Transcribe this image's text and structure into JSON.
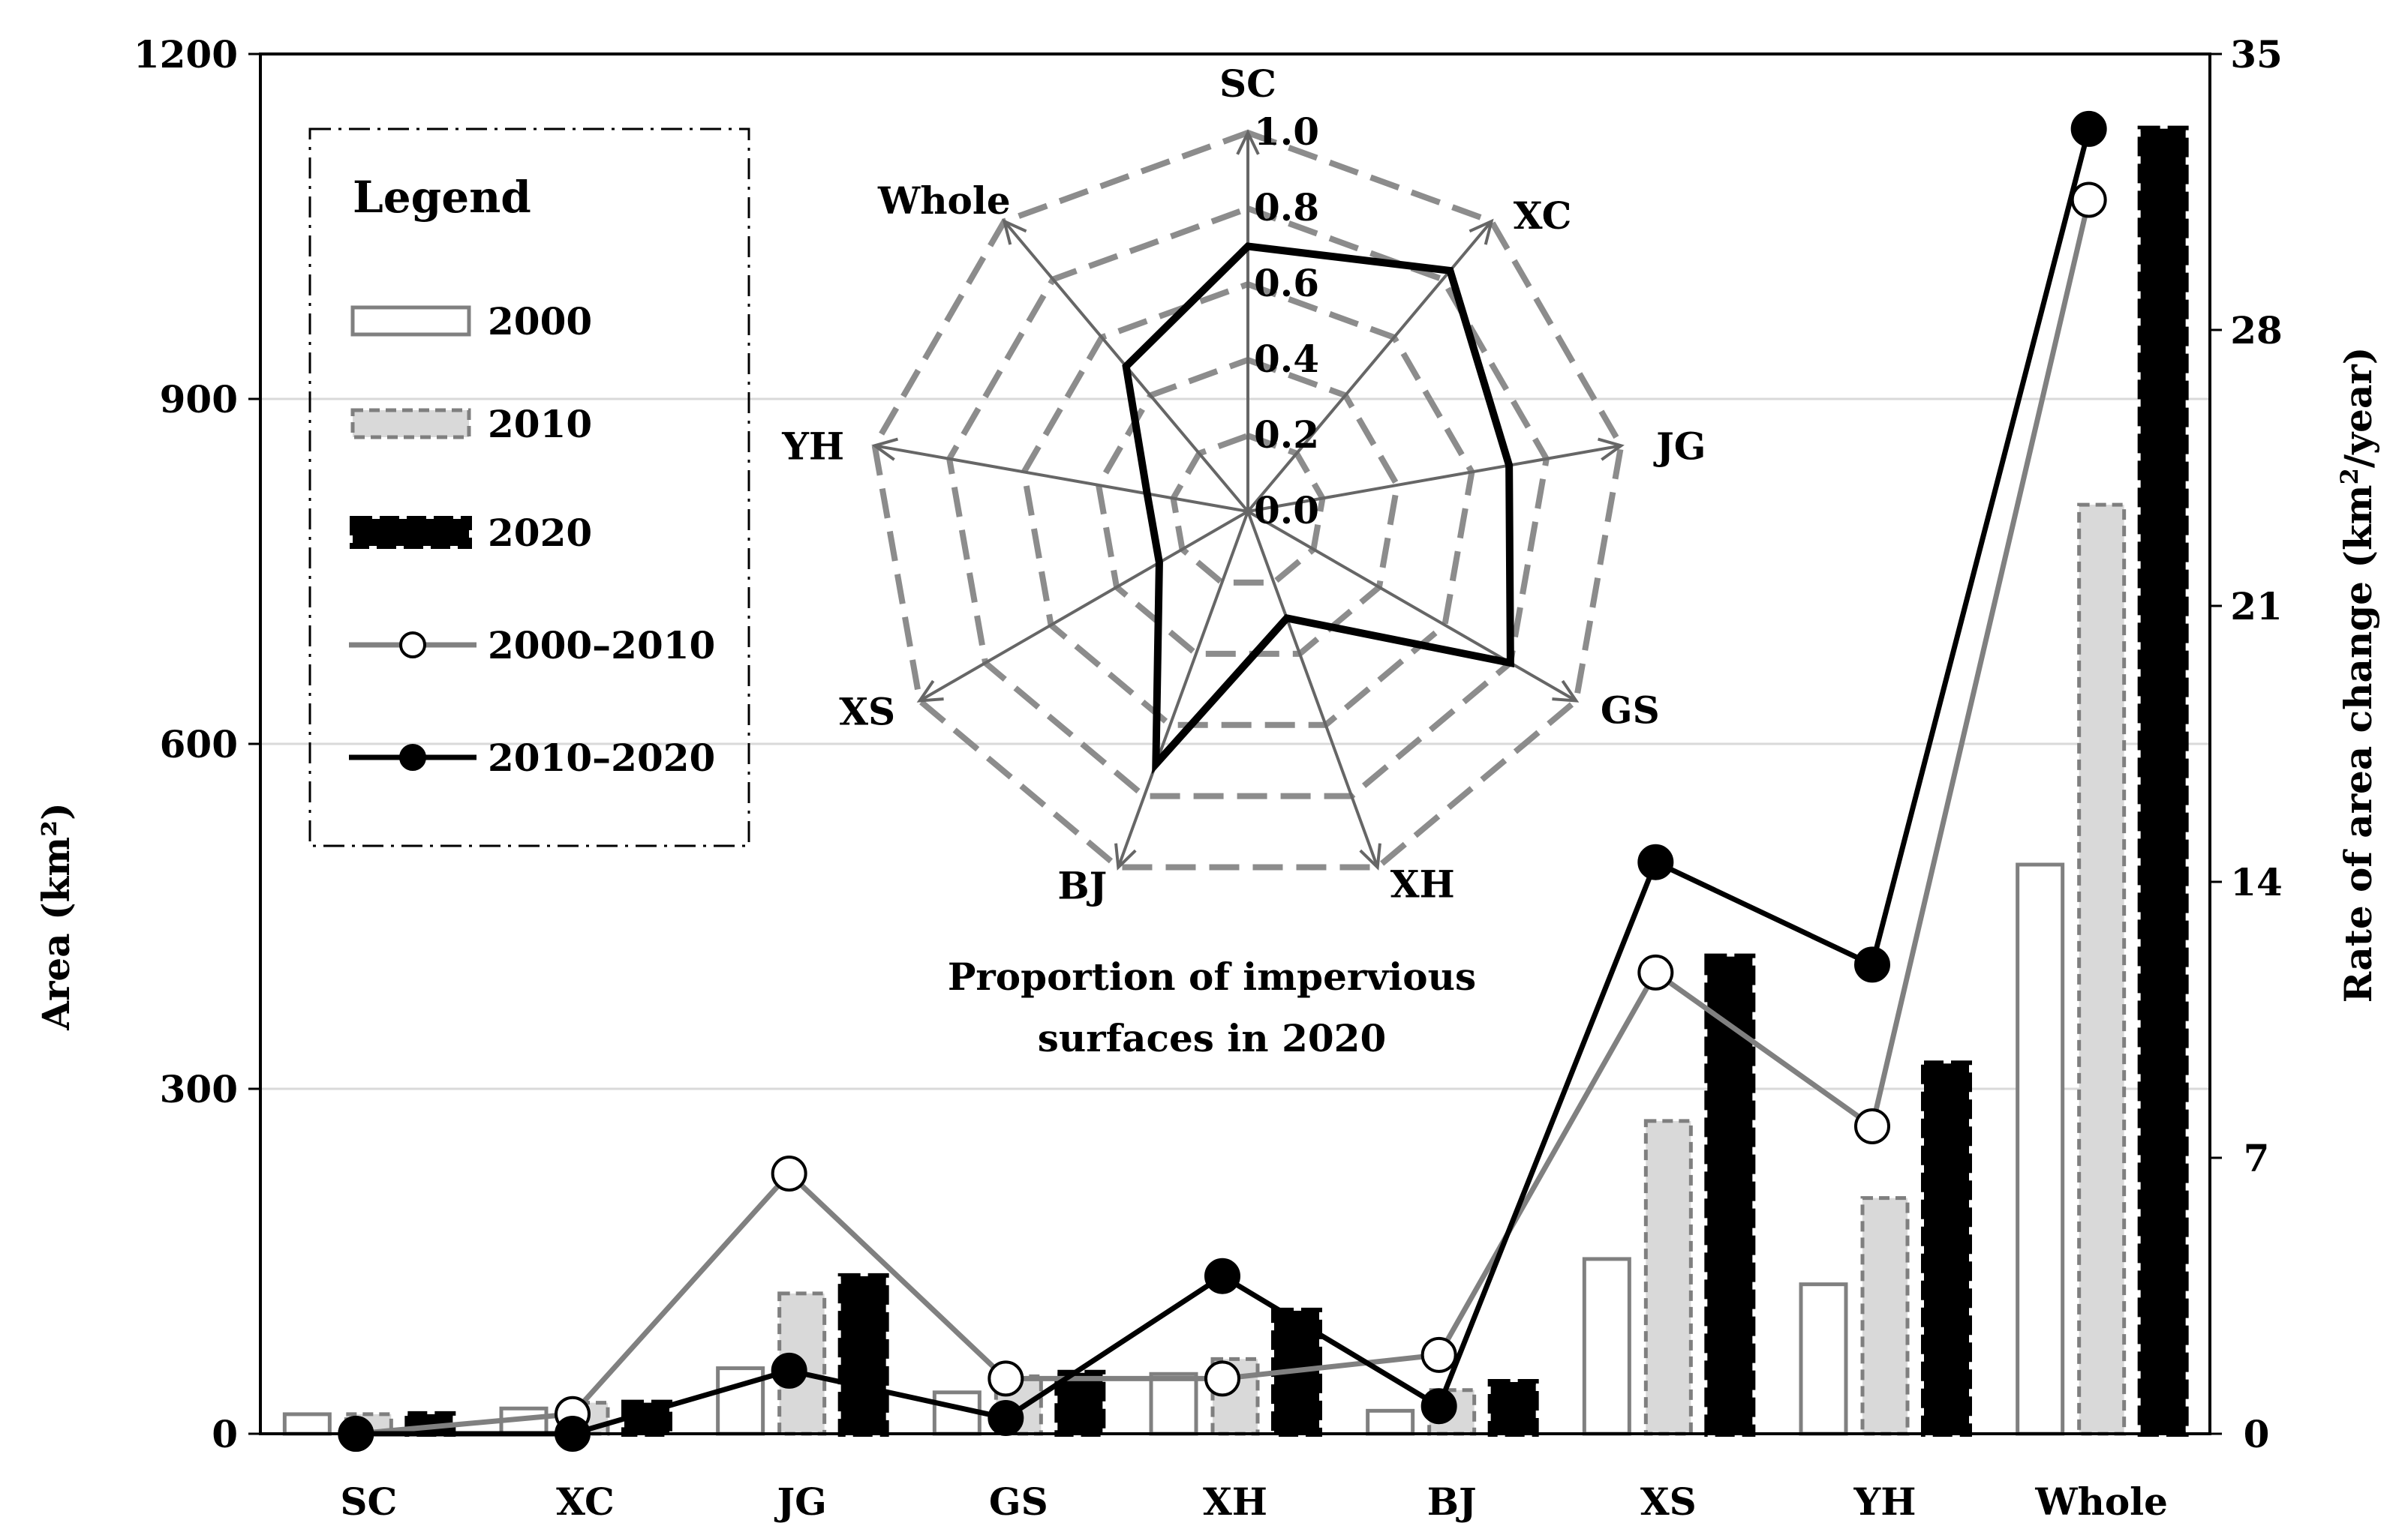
{
  "chart_data": [
    {
      "type": "bar",
      "categories": [
        "SC",
        "XC",
        "JG",
        "GS",
        "XH",
        "BJ",
        "XS",
        "YH",
        "Whole"
      ],
      "series": [
        {
          "name": "2000",
          "values": [
            17,
            22,
            57,
            36,
            52,
            20,
            152,
            130,
            495
          ],
          "color": "#ffffff",
          "stroke": "#808080"
        },
        {
          "name": "2010",
          "values": [
            17,
            27,
            122,
            50,
            65,
            38,
            272,
            205,
            808
          ],
          "color": "#d9d9d9",
          "stroke": "#7f7f7f"
        },
        {
          "name": "2020",
          "values": [
            17,
            27,
            137,
            53,
            107,
            45,
            415,
            322,
            1135
          ],
          "color": "#000000",
          "stroke": "#000000"
        }
      ],
      "ylabel": "Area (km²)",
      "ylim": [
        0,
        1200
      ],
      "yticks": [
        "0",
        "300",
        "600",
        "900",
        "1200"
      ],
      "grid": true,
      "legend": "top-left"
    },
    {
      "type": "line",
      "categories": [
        "SC",
        "XC",
        "JG",
        "GS",
        "XH",
        "BJ",
        "XS",
        "YH",
        "Whole"
      ],
      "series": [
        {
          "name": "2000–2010",
          "values": [
            0.0,
            0.5,
            6.6,
            1.4,
            1.4,
            2.0,
            11.7,
            7.8,
            31.3
          ],
          "color": "#808080",
          "marker": "open-circle"
        },
        {
          "name": "2010–2020",
          "values": [
            0.0,
            0.0,
            1.6,
            0.4,
            4.0,
            0.7,
            14.5,
            11.9,
            33.1
          ],
          "color": "#000000",
          "marker": "filled-circle"
        }
      ],
      "ylabel_prefix": "Rate of  area change (km",
      "ylabel_sup": "2",
      "ylabel_suffix": "/year)",
      "ylim": [
        0,
        35
      ],
      "yticks": [
        "0",
        "7",
        "14",
        "21",
        "28",
        "35"
      ],
      "axis": "right"
    },
    {
      "type": "radar",
      "categories": [
        "SC",
        "XC",
        "JG",
        "GS",
        "XH",
        "BJ",
        "XS",
        "YH",
        "Whole"
      ],
      "values": [
        0.7,
        0.83,
        0.7,
        0.8,
        0.3,
        0.71,
        0.27,
        0.27,
        0.5
      ],
      "rlim": [
        0,
        1
      ],
      "rticks": [
        "0.0",
        "0.2",
        "0.4",
        "0.6",
        "0.8",
        "1.0"
      ],
      "caption_line1": "Proportion of impervious",
      "caption_line2": "surfaces in 2020"
    }
  ],
  "legend": {
    "title": "Legend",
    "items": [
      "2000",
      "2010",
      "2020",
      "2000–2010",
      "2010–2020"
    ]
  }
}
